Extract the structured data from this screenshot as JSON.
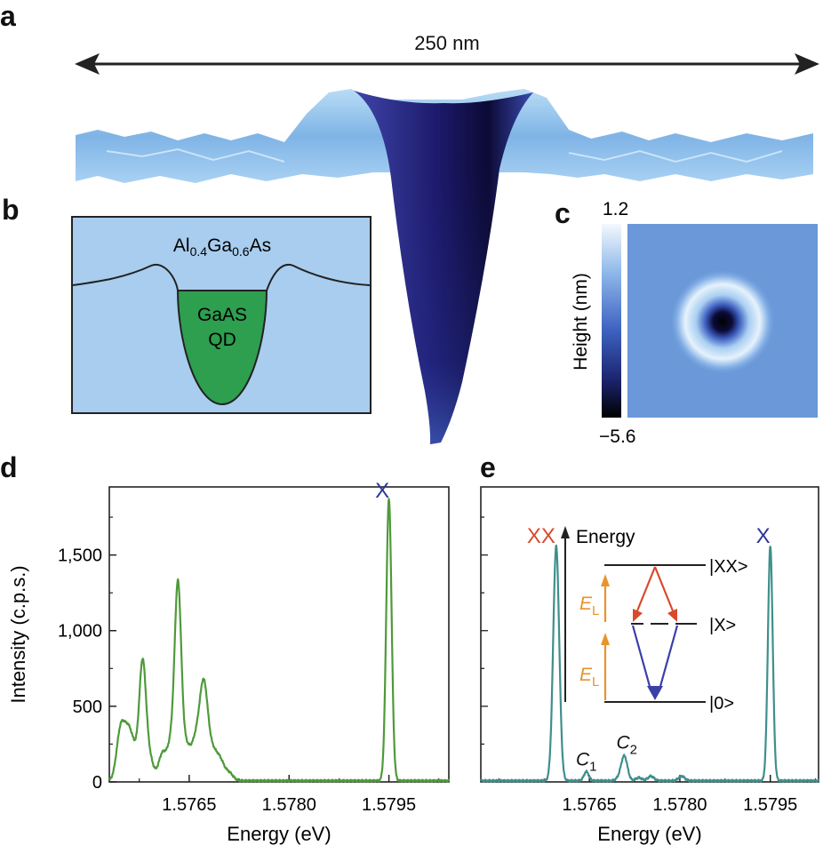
{
  "figure": {
    "panels": {
      "a": "a",
      "b": "b",
      "c": "c",
      "d": "d",
      "e": "e"
    }
  },
  "panel_a": {
    "scale_label": "250 nm"
  },
  "panel_b": {
    "matrix": {
      "base": "Al",
      "sub1": "0.4",
      "mid": "Ga",
      "sub2": "0.6",
      "end": "As"
    },
    "dot_line1": "GaAS",
    "dot_line2": "QD",
    "colors": {
      "matrix": "#a8cdee",
      "dot": "#2e9e4f"
    }
  },
  "panel_c": {
    "colorbar_max": "1.2",
    "colorbar_min": "−5.6",
    "colorbar_label": "Height (nm)"
  },
  "chart_data": [
    {
      "id": "d",
      "type": "line",
      "xlabel": "Energy (eV)",
      "ylabel": "Intensity (c.p.s.)",
      "xlim": [
        1.5753,
        1.5804
      ],
      "ylim": [
        0,
        1950
      ],
      "xticks": [
        1.5765,
        1.578,
        1.5795
      ],
      "xtick_labels": [
        "1.5765",
        "1.5780",
        "1.5795"
      ],
      "yticks": [
        0,
        500,
        1000,
        1500
      ],
      "ytick_labels": [
        "0",
        "500",
        "1,000",
        "1,500"
      ],
      "color": "#4e9a3a",
      "peaks": [
        {
          "x": 1.57547,
          "h": 330,
          "w": 6e-05
        },
        {
          "x": 1.57558,
          "h": 240,
          "w": 6e-05
        },
        {
          "x": 1.57567,
          "h": 170,
          "w": 7e-05
        },
        {
          "x": 1.5758,
          "h": 740,
          "w": 5e-05
        },
        {
          "x": 1.5759,
          "h": 150,
          "w": 6e-05
        },
        {
          "x": 1.5761,
          "h": 180,
          "w": 6e-05
        },
        {
          "x": 1.57622,
          "h": 200,
          "w": 5e-05
        },
        {
          "x": 1.57633,
          "h": 1280,
          "w": 5e-05
        },
        {
          "x": 1.57645,
          "h": 200,
          "w": 6e-05
        },
        {
          "x": 1.5766,
          "h": 260,
          "w": 7e-05
        },
        {
          "x": 1.57672,
          "h": 580,
          "w": 6e-05
        },
        {
          "x": 1.57685,
          "h": 180,
          "w": 7e-05
        },
        {
          "x": 1.57697,
          "h": 110,
          "w": 6e-05
        },
        {
          "x": 1.5771,
          "h": 50,
          "w": 6e-05
        },
        {
          "x": 1.5795,
          "h": 1860,
          "w": 4e-05
        }
      ],
      "annotations": [
        {
          "text": "X",
          "x": 1.5794,
          "y": 1880,
          "color": "#2b3499"
        }
      ]
    },
    {
      "id": "e",
      "type": "line",
      "xlabel": "Energy (eV)",
      "ylabel": "",
      "xlim": [
        1.5747,
        1.5803
      ],
      "ylim": [
        0,
        1950
      ],
      "xticks": [
        1.5765,
        1.578,
        1.5795
      ],
      "xtick_labels": [
        "1.5765",
        "1.5780",
        "1.5795"
      ],
      "color": "#3f8f8c",
      "peaks": [
        {
          "x": 1.57595,
          "h": 1550,
          "w": 5e-05
        },
        {
          "x": 1.57645,
          "h": 60,
          "w": 4e-05
        },
        {
          "x": 1.577,
          "h": 20,
          "w": 5e-05
        },
        {
          "x": 1.57708,
          "h": 160,
          "w": 5e-05
        },
        {
          "x": 1.57732,
          "h": 20,
          "w": 5e-05
        },
        {
          "x": 1.57752,
          "h": 30,
          "w": 5e-05
        },
        {
          "x": 1.57803,
          "h": 30,
          "w": 5e-05
        },
        {
          "x": 1.5795,
          "h": 1550,
          "w": 4e-05
        }
      ],
      "annotations": [
        {
          "text": "XX",
          "x": 1.5757,
          "y": 1580,
          "color": "#d94a2c"
        },
        {
          "text": "X",
          "x": 1.57938,
          "y": 1580,
          "color": "#2b3499"
        },
        {
          "text": "C",
          "sub": "1",
          "x": 1.57645,
          "y": 110,
          "color": "#111"
        },
        {
          "text": "C",
          "sub": "2",
          "x": 1.57712,
          "y": 220,
          "color": "#111"
        }
      ],
      "inset": {
        "axis_label": "Energy",
        "levels": [
          "|XX>",
          "|X>",
          "|0>"
        ],
        "el_label": "E",
        "el_sub": "L"
      }
    }
  ]
}
